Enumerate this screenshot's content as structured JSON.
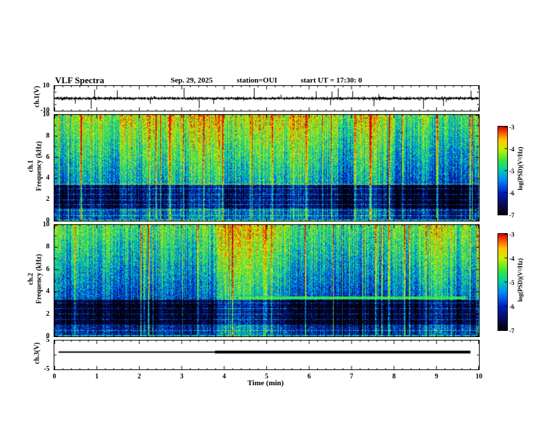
{
  "header": {
    "title": "VLF Spectra",
    "date": "Sep. 29, 2025",
    "station": "station=OUI",
    "start_ut": "start UT  =   17:30: 0"
  },
  "xaxis": {
    "label": "Time (min)",
    "ticks": [
      0,
      1,
      2,
      3,
      4,
      5,
      6,
      7,
      8,
      9,
      10
    ],
    "range": [
      0,
      10
    ]
  },
  "colorbars": [
    {
      "id": "colorbar-ch1",
      "label": "log(PSD)(V²/Hz)",
      "ticks": [
        -3,
        -4,
        -5,
        -6,
        -7
      ],
      "range": [
        -7,
        -3
      ]
    },
    {
      "id": "colorbar-ch2",
      "label": "log(PSD)(V²/Hz)",
      "ticks": [
        -3,
        -4,
        -5,
        -6,
        -7
      ],
      "range": [
        -7,
        -3
      ]
    }
  ],
  "chart_data": [
    {
      "id": "ch1-waveform",
      "type": "line",
      "ylabel": "ch.1(V)",
      "ylim": [
        -10,
        10
      ],
      "yticks": [
        10,
        -10
      ],
      "xlim": [
        0,
        10
      ],
      "description": "Broadband noisy time series centered on 0 V with impulsive spikes reaching about ±9 V",
      "noise_amplitude_V": 1.2,
      "spike_amplitude_V": 9,
      "spike_probability": 0.02,
      "color": "#000000"
    },
    {
      "id": "ch1-spectrogram",
      "type": "heatmap",
      "ylabel": [
        "ch.1",
        "Frequency (kHz)"
      ],
      "ylim": [
        0,
        10
      ],
      "yticks": [
        0,
        2,
        4,
        6,
        8,
        10
      ],
      "xlim": [
        0,
        10
      ],
      "value_range": [
        -7,
        -3
      ],
      "value_units": "log(PSD) V²/Hz",
      "colormap": "jet (black-blue-cyan-green-yellow-red)",
      "features": {
        "high_intensity_band_khz": [
          3.4,
          10
        ],
        "quiet_dark_band_khz": [
          1.2,
          3.4
        ],
        "low_band_khz": [
          0,
          1.2
        ],
        "harmonic_line_spacing_khz": 0.5,
        "vertical_burst_streaks": true
      }
    },
    {
      "id": "ch2-spectrogram",
      "type": "heatmap",
      "ylabel": [
        "ch.2",
        "Frequency (kHz)"
      ],
      "ylim": [
        0,
        10
      ],
      "yticks": [
        0,
        2,
        4,
        6,
        8,
        10
      ],
      "xlim": [
        0,
        10
      ],
      "value_range": [
        -7,
        -3
      ],
      "value_units": "log(PSD) V²/Hz",
      "colormap": "jet (black-blue-cyan-green-yellow-red)",
      "features": {
        "high_intensity_band_khz": [
          3.3,
          10
        ],
        "quiet_dark_band_khz": [
          1.0,
          3.3
        ],
        "low_band_khz": [
          0,
          1.0
        ],
        "harmonic_line_spacing_khz": 0.5,
        "vertical_burst_streaks": true,
        "carrier_line": {
          "freq_khz": 3.5,
          "t_start_min": 4.35,
          "t_end_min": 9.7
        }
      }
    },
    {
      "id": "ch3-status",
      "type": "line",
      "ylabel": "ch.3(V)",
      "ylim": [
        -5,
        5
      ],
      "yticks": [
        5,
        -5
      ],
      "xlim": [
        0,
        10
      ],
      "segments": [
        {
          "t_start_min": 0.1,
          "t_end_min": 3.78,
          "value_V": 1.0,
          "thickness_px": 2
        },
        {
          "t_start_min": 3.78,
          "t_end_min": 9.8,
          "value_V": 1.0,
          "thickness_px": 4
        }
      ],
      "color": "#000000"
    }
  ]
}
